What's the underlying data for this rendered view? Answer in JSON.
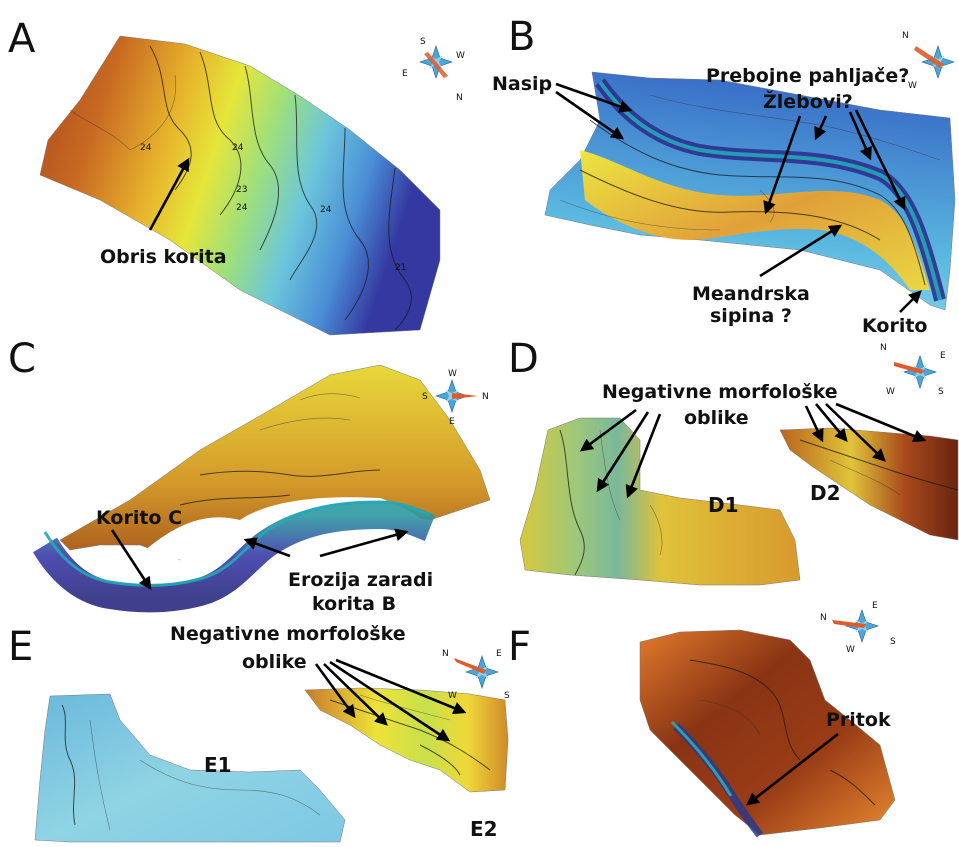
{
  "panels": {
    "A": {
      "letter": "A",
      "labels": {
        "channel_outline": "Obris korita"
      }
    },
    "B": {
      "letter": "B",
      "labels": {
        "levee": "Nasip",
        "crevasse": "Prebojne pahljače?",
        "grooves": "Žlebovi?",
        "point_bar_1": "Meandrska",
        "point_bar_2": "sipina ?",
        "channel": "Korito"
      }
    },
    "C": {
      "letter": "C",
      "labels": {
        "channel_c": "Korito C",
        "erosion_1": "Erozija zaradi",
        "erosion_2": "korita B"
      }
    },
    "D": {
      "letter": "D",
      "labels": {
        "neg_1": "Negativne morfološke",
        "neg_2": "oblike",
        "d1": "D1",
        "d2": "D2"
      }
    },
    "E": {
      "letter": "E",
      "labels": {
        "neg_1": "Negativne morfološke",
        "neg_2": "oblike",
        "e1": "E1",
        "e2": "E2"
      }
    },
    "F": {
      "letter": "F",
      "labels": {
        "tributary": "Pritok"
      }
    }
  },
  "compasses": {
    "A": {
      "n": "N",
      "s": "S",
      "e": "E",
      "w": "W"
    },
    "B": {
      "n": "N",
      "w": "W"
    },
    "C": {
      "n": "N",
      "s": "S",
      "e": "E",
      "w": "W"
    },
    "D": {
      "n": "N",
      "s": "S",
      "e": "E",
      "w": "W"
    },
    "E": {
      "n": "N",
      "s": "S",
      "e": "E",
      "w": "W"
    },
    "F": {
      "n": "N",
      "s": "S",
      "e": "E",
      "w": "W"
    }
  },
  "contour_labels": {
    "a1": "24",
    "a2": "24",
    "a3": "23",
    "a4": "24",
    "a5": "24",
    "a6": "21"
  },
  "colors": {
    "deep_blue": "#3a3aa8",
    "blue": "#4a8fd8",
    "cyan": "#6fd0e0",
    "green": "#9ee07a",
    "yellow": "#f2e23a",
    "orange": "#e08a2a",
    "brown": "#8a3a18"
  }
}
